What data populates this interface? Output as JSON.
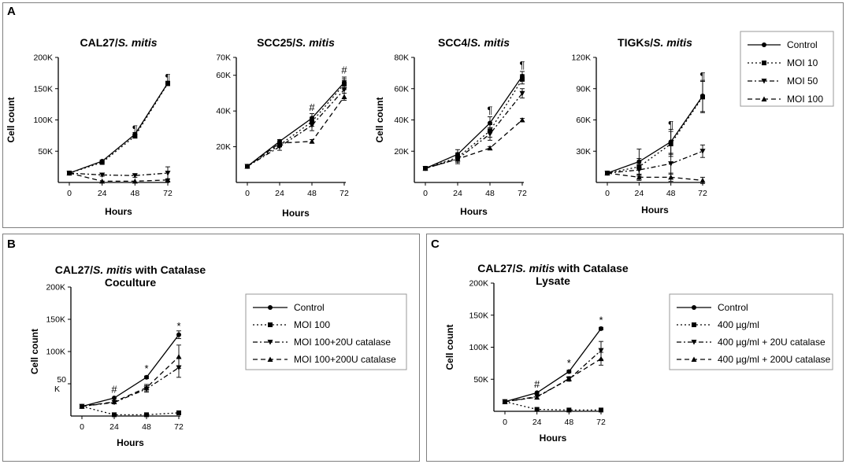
{
  "panels": [
    {
      "letter": "A"
    },
    {
      "letter": "B"
    },
    {
      "letter": "C"
    }
  ],
  "chart_data": [
    {
      "type": "line",
      "panel": "A",
      "title": "CAL27/",
      "title_italic": "S. mitis",
      "title_line2": "",
      "xlabel": "Hours",
      "ylabel": "Cell count",
      "x": [
        0,
        24,
        48,
        72
      ],
      "xlim": [
        0,
        72
      ],
      "ylim": [
        0,
        200000
      ],
      "yticks": [
        50000,
        100000,
        150000,
        200000
      ],
      "ytick_labels": [
        "50K",
        "100K",
        "150K",
        "200K"
      ],
      "series": [
        {
          "name": "Control",
          "values": [
            15000,
            34000,
            77000,
            159000
          ],
          "err": [
            1000,
            2000,
            3000,
            3000
          ]
        },
        {
          "name": "MOI 10",
          "values": [
            15000,
            32000,
            74000,
            158000
          ],
          "err": [
            1000,
            2000,
            3000,
            3000
          ]
        },
        {
          "name": "MOI 50",
          "values": [
            15000,
            12000,
            11000,
            15000
          ],
          "err": [
            1000,
            2000,
            3000,
            10000
          ]
        },
        {
          "name": "MOI 100",
          "values": [
            15000,
            2000,
            2000,
            4000
          ],
          "err": [
            1000,
            1000,
            1000,
            2000
          ]
        }
      ],
      "annotations": [
        {
          "x": 48,
          "y": 80000,
          "text": "¶"
        },
        {
          "x": 72,
          "y": 162000,
          "text": "¶"
        }
      ]
    },
    {
      "type": "line",
      "panel": "A",
      "title": "SCC25/",
      "title_italic": "S. mitis",
      "title_line2": "",
      "xlabel": "Hours",
      "ylabel": "",
      "x": [
        0,
        24,
        48,
        72
      ],
      "xlim": [
        0,
        72
      ],
      "ylim": [
        0,
        70000
      ],
      "yticks": [
        20000,
        40000,
        60000,
        70000
      ],
      "ytick_labels": [
        "20K",
        "40K",
        "60K",
        "70K"
      ],
      "series": [
        {
          "name": "Control",
          "values": [
            9000,
            23000,
            36000,
            56000
          ],
          "err": [
            500,
            1000,
            2500,
            3000
          ]
        },
        {
          "name": "MOI 10",
          "values": [
            9000,
            21000,
            34000,
            55000
          ],
          "err": [
            500,
            1000,
            2500,
            3000
          ]
        },
        {
          "name": "MOI 50",
          "values": [
            9000,
            20000,
            32000,
            52000
          ],
          "err": [
            500,
            2000,
            3000,
            5000
          ]
        },
        {
          "name": "MOI 100",
          "values": [
            9000,
            22000,
            23000,
            48000
          ],
          "err": [
            500,
            1000,
            1000,
            2000
          ]
        }
      ],
      "annotations": [
        {
          "x": 48,
          "y": 40000,
          "text": "#"
        },
        {
          "x": 72,
          "y": 61000,
          "text": "#"
        }
      ]
    },
    {
      "type": "line",
      "panel": "A",
      "title": "SCC4/",
      "title_italic": "S. mitis",
      "title_line2": "",
      "xlabel": "Hours",
      "ylabel": "Cell count",
      "x": [
        0,
        24,
        48,
        72
      ],
      "xlim": [
        0,
        72
      ],
      "ylim": [
        0,
        80000
      ],
      "yticks": [
        20000,
        40000,
        60000,
        80000
      ],
      "ytick_labels": [
        "20K",
        "40K",
        "60K",
        "80K"
      ],
      "series": [
        {
          "name": "Control",
          "values": [
            9000,
            18000,
            38000,
            68000
          ],
          "err": [
            500,
            3000,
            4000,
            3000
          ]
        },
        {
          "name": "MOI 10",
          "values": [
            9000,
            16000,
            33000,
            66000
          ],
          "err": [
            500,
            3000,
            4000,
            3000
          ]
        },
        {
          "name": "MOI 50",
          "values": [
            9000,
            15000,
            31000,
            57000
          ],
          "err": [
            500,
            3000,
            4000,
            3000
          ]
        },
        {
          "name": "MOI 100",
          "values": [
            9000,
            15000,
            22000,
            40000
          ],
          "err": [
            500,
            1000,
            1000,
            1000
          ]
        }
      ],
      "annotations": [
        {
          "x": 48,
          "y": 44000,
          "text": "¶"
        },
        {
          "x": 72,
          "y": 73000,
          "text": "¶"
        }
      ]
    },
    {
      "type": "line",
      "panel": "A",
      "title": "TIGKs/",
      "title_italic": "S. mitis",
      "title_line2": "",
      "xlabel": "Hours",
      "ylabel": "",
      "x": [
        0,
        24,
        48,
        72
      ],
      "xlim": [
        0,
        72
      ],
      "ylim": [
        0,
        120000
      ],
      "yticks": [
        30000,
        60000,
        90000,
        120000
      ],
      "ytick_labels": [
        "30K",
        "60K",
        "90K",
        "120K"
      ],
      "series": [
        {
          "name": "Control",
          "values": [
            9000,
            20000,
            39000,
            83000
          ],
          "err": [
            1000,
            12000,
            12000,
            15000
          ]
        },
        {
          "name": "MOI 10",
          "values": [
            9000,
            15000,
            37000,
            82000
          ],
          "err": [
            1000,
            8000,
            12000,
            15000
          ]
        },
        {
          "name": "MOI 50",
          "values": [
            9000,
            12000,
            18000,
            30000
          ],
          "err": [
            1000,
            6000,
            10000,
            6000
          ]
        },
        {
          "name": "MOI 100",
          "values": [
            9000,
            5000,
            5000,
            2000
          ],
          "err": [
            1000,
            3000,
            4000,
            3000
          ]
        }
      ],
      "annotations": [
        {
          "x": 48,
          "y": 52000,
          "text": "¶"
        },
        {
          "x": 72,
          "y": 99000,
          "text": "¶"
        }
      ]
    },
    {
      "type": "line",
      "panel": "B",
      "title": "CAL27/",
      "title_italic": "S. mitis",
      "title_tail": " with Catalase",
      "title_line2": "Coculture",
      "xlabel": "Hours",
      "ylabel": "Cell count",
      "x": [
        0,
        24,
        48,
        72
      ],
      "xlim": [
        0,
        72
      ],
      "ylim": [
        0,
        200000
      ],
      "yticks": [
        50000,
        100000,
        150000,
        200000
      ],
      "ytick_labels": [
        "50 K",
        "100K",
        "150K",
        "200K"
      ],
      "series": [
        {
          "name": "Control",
          "values": [
            15000,
            28000,
            60000,
            126000
          ],
          "err": [
            1000,
            1000,
            2000,
            6000
          ]
        },
        {
          "name": "MOI 100",
          "values": [
            15000,
            2000,
            2000,
            5000
          ],
          "err": [
            1000,
            1000,
            1000,
            1000
          ]
        },
        {
          "name": "MOI 100+20U catalase",
          "values": [
            15000,
            21000,
            42000,
            75000
          ],
          "err": [
            1000,
            1000,
            5000,
            15000
          ]
        },
        {
          "name": "MOI 100+200U catalase",
          "values": [
            15000,
            22000,
            44000,
            92000
          ],
          "err": [
            1000,
            1000,
            5000,
            18000
          ]
        }
      ],
      "annotations": [
        {
          "x": 24,
          "y": 36000,
          "text": "#"
        },
        {
          "x": 48,
          "y": 68000,
          "text": "*"
        },
        {
          "x": 72,
          "y": 134000,
          "text": "*"
        }
      ]
    },
    {
      "type": "line",
      "panel": "C",
      "title": "CAL27/",
      "title_italic": "S. mitis",
      "title_tail": " with Catalase",
      "title_line2": "Lysate",
      "xlabel": "Hours",
      "ylabel": "Cell count",
      "x": [
        0,
        24,
        48,
        72
      ],
      "xlim": [
        0,
        72
      ],
      "ylim": [
        0,
        200000
      ],
      "yticks": [
        50000,
        100000,
        150000,
        200000
      ],
      "ytick_labels": [
        "50K",
        "100K",
        "150K",
        "200K"
      ],
      "series": [
        {
          "name": "Control",
          "values": [
            15000,
            29000,
            62000,
            129000
          ],
          "err": [
            1000,
            1000,
            2000,
            2000
          ]
        },
        {
          "name": "400 µg/ml",
          "values": [
            15000,
            3000,
            2000,
            2000
          ],
          "err": [
            1000,
            1000,
            1000,
            1000
          ]
        },
        {
          "name": "400 µg/ml + 20U catalase",
          "values": [
            15000,
            23000,
            50000,
            95000
          ],
          "err": [
            1000,
            1000,
            3000,
            14000
          ]
        },
        {
          "name": "400 µg/ml + 200U catalase",
          "values": [
            15000,
            22000,
            51000,
            82000
          ],
          "err": [
            1000,
            1000,
            3000,
            10000
          ]
        }
      ],
      "annotations": [
        {
          "x": 24,
          "y": 37000,
          "text": "#"
        },
        {
          "x": 48,
          "y": 70000,
          "text": "*"
        },
        {
          "x": 72,
          "y": 137000,
          "text": "*"
        }
      ]
    }
  ],
  "legends": [
    {
      "panel": "A",
      "entries": [
        "Control",
        "MOI 10",
        "MOI 50",
        "MOI 100"
      ]
    },
    {
      "panel": "B",
      "entries": [
        "Control",
        "MOI 100",
        "MOI 100+20U catalase",
        "MOI 100+200U catalase"
      ]
    },
    {
      "panel": "C",
      "entries": [
        "Control",
        "400 µg/ml",
        "400 µg/ml + 20U catalase",
        "400 µg/ml + 200U catalase"
      ]
    }
  ]
}
